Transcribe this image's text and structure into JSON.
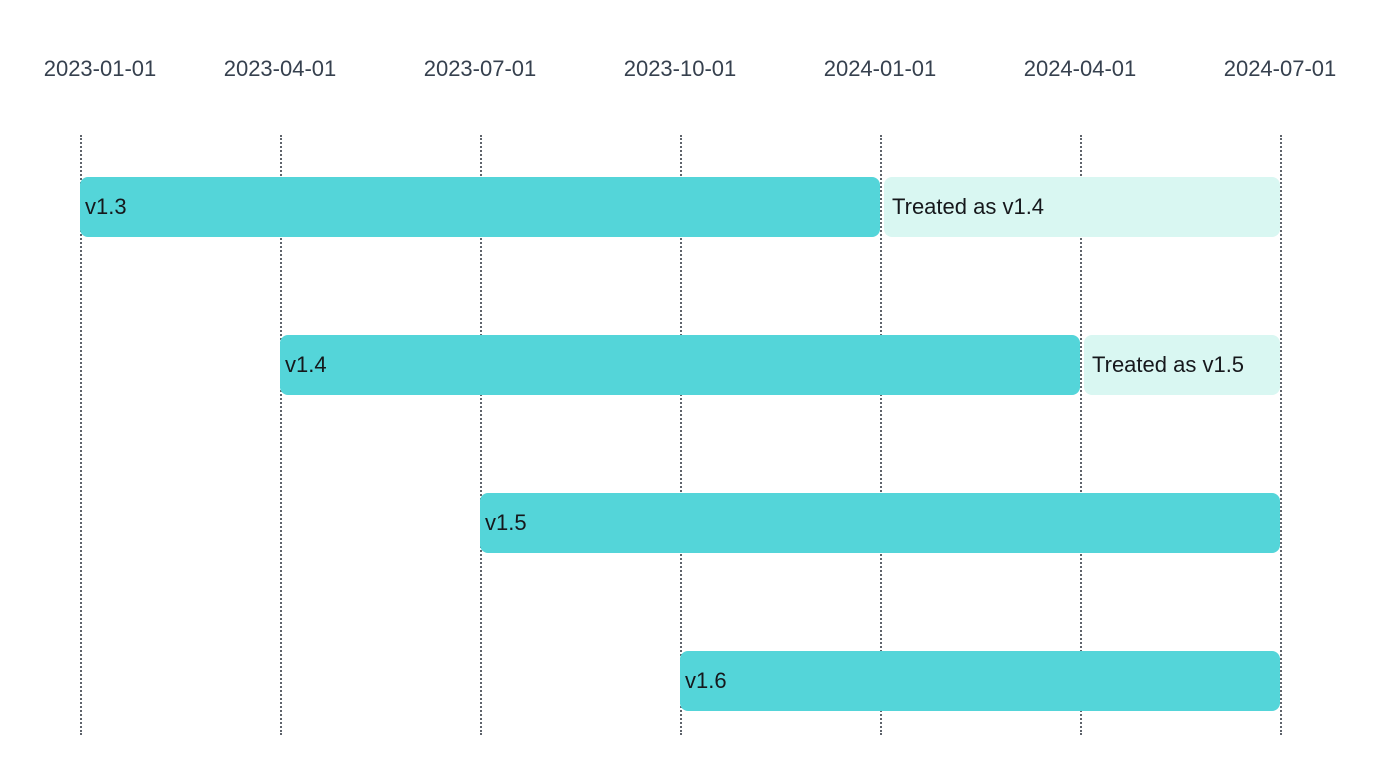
{
  "chart_data": {
    "type": "gantt",
    "title": "",
    "axis": {
      "position": "top",
      "range": [
        "2023-01-01",
        "2024-07-01"
      ],
      "ticks": [
        "2023-01-01",
        "2023-04-01",
        "2023-07-01",
        "2023-10-01",
        "2024-01-01",
        "2024-04-01",
        "2024-07-01"
      ],
      "grid": "dotted"
    },
    "rows": [
      {
        "segments": [
          {
            "label": "v1.3",
            "start": "2023-01-01",
            "end": "2024-01-01",
            "style": "solid"
          },
          {
            "label": "Treated as v1.4",
            "start": "2024-01-01",
            "end": "2024-07-01",
            "style": "light"
          }
        ]
      },
      {
        "segments": [
          {
            "label": "v1.4",
            "start": "2023-04-01",
            "end": "2024-04-01",
            "style": "solid"
          },
          {
            "label": "Treated as v1.5",
            "start": "2024-04-01",
            "end": "2024-07-01",
            "style": "light"
          }
        ]
      },
      {
        "segments": [
          {
            "label": "v1.5",
            "start": "2023-07-01",
            "end": "2024-07-01",
            "style": "solid"
          }
        ]
      },
      {
        "segments": [
          {
            "label": "v1.6",
            "start": "2023-10-01",
            "end": "2024-07-01",
            "style": "solid"
          }
        ]
      }
    ],
    "colors": {
      "solid": "#54d5d9",
      "light": "#d9f7f2",
      "bar_text": "#16181c",
      "axis_text": "#36404e",
      "gridline": "#5f646b",
      "background": "#ffffff"
    }
  }
}
